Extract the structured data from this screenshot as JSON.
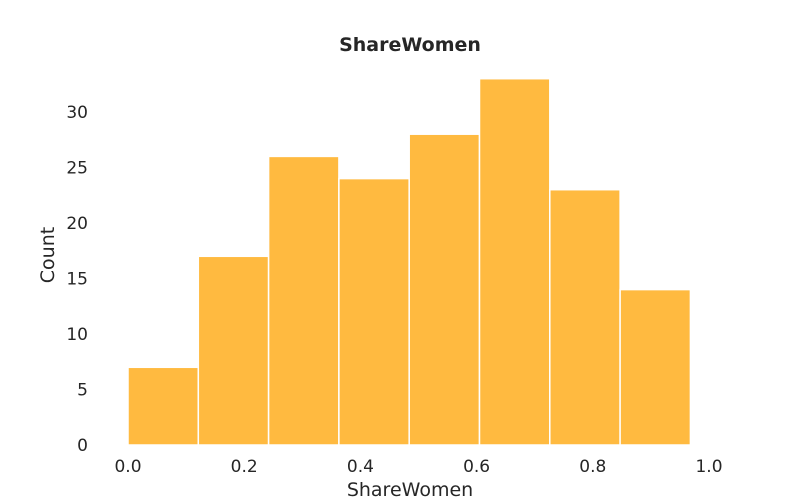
{
  "chart_data": {
    "type": "bar",
    "title": "ShareWomen",
    "xlabel": "ShareWomen",
    "ylabel": "Count",
    "bin_edges": [
      0.0,
      0.121,
      0.242,
      0.363,
      0.484,
      0.605,
      0.726,
      0.847,
      0.968
    ],
    "values": [
      7,
      17,
      26,
      24,
      28,
      33,
      23,
      14
    ],
    "xlim": [
      0.0,
      1.0
    ],
    "ylim": [
      0,
      34
    ],
    "xticks": [
      "0.0",
      "0.2",
      "0.4",
      "0.6",
      "0.8",
      "1.0"
    ],
    "yticks": [
      "0",
      "5",
      "10",
      "15",
      "20",
      "25",
      "30"
    ],
    "grid": false,
    "bar_color": "#FFBA40"
  }
}
